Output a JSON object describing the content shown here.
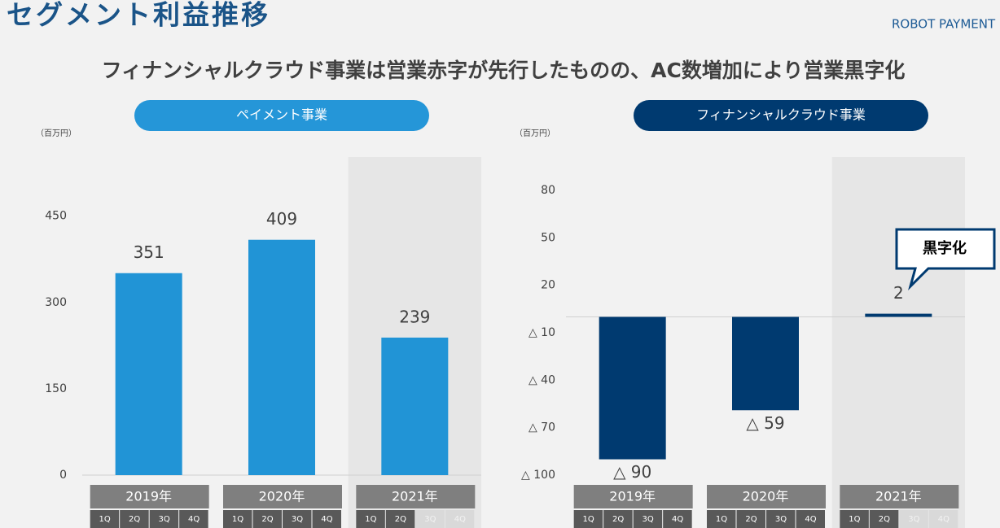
{
  "title": "セグメント利益推移",
  "subtitle": "フィナンシャルクラウド事業は営業赤字が先行したものの、AC数増加により営業黒字化",
  "logo": "ROBOT PAYMENT",
  "chart_data": [
    {
      "type": "bar",
      "title": "ペイメント事業",
      "y_unit": "（百万円）",
      "categories": [
        "2019年",
        "2020年",
        "2021年"
      ],
      "quarters": [
        "1Q",
        "2Q",
        "3Q",
        "4Q"
      ],
      "values": [
        351,
        409,
        239
      ],
      "color": "#2194d6",
      "ylim": [
        0,
        550
      ],
      "yticks": [
        0,
        150,
        300,
        450
      ]
    },
    {
      "type": "bar",
      "title": "フィナンシャルクラウド事業",
      "y_unit": "（百万円）",
      "categories": [
        "2019年",
        "2020年",
        "2021年"
      ],
      "quarters": [
        "1Q",
        "2Q",
        "3Q",
        "4Q"
      ],
      "values": [
        -90,
        -59,
        2
      ],
      "value_labels": [
        "△ 90",
        "△ 59",
        "2"
      ],
      "color": "#003a70",
      "ylim": [
        -100,
        100
      ],
      "yticks": [
        {
          "value": -100,
          "label": "△ 100"
        },
        {
          "value": -70,
          "label": "△ 70"
        },
        {
          "value": -40,
          "label": "△ 40"
        },
        {
          "value": -10,
          "label": "△ 10"
        },
        20,
        50,
        80
      ],
      "annotation": "黒字化"
    }
  ]
}
